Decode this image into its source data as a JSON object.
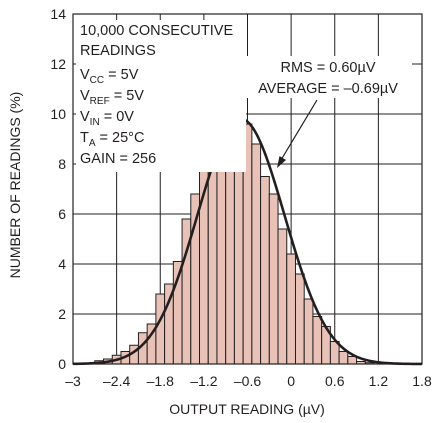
{
  "chart_data": {
    "type": "bar",
    "title": "",
    "xlabel": "OUTPUT READING (µV)",
    "ylabel": "NUMBER OF READINGS (%)",
    "xlim": [
      -3,
      1.8
    ],
    "ylim": [
      0,
      14
    ],
    "x_ticks": [
      -3,
      -2.4,
      -1.8,
      -1.2,
      -0.6,
      0,
      0.6,
      1.2,
      1.8
    ],
    "x_tick_labels": [
      "–3",
      "–2.4",
      "–1.8",
      "–1.2",
      "–0.6",
      "0",
      "0.6",
      "1.2",
      "1.8"
    ],
    "y_ticks": [
      0,
      2,
      4,
      6,
      8,
      10,
      12,
      14
    ],
    "y_tick_labels": [
      "0",
      "2",
      "4",
      "6",
      "8",
      "10",
      "12",
      "14"
    ],
    "grid": true,
    "bin_width": 0.12,
    "bins": [
      {
        "x": -2.64,
        "y": 0.13
      },
      {
        "x": -2.52,
        "y": 0.2
      },
      {
        "x": -2.4,
        "y": 0.35
      },
      {
        "x": -2.28,
        "y": 0.5
      },
      {
        "x": -2.16,
        "y": 0.75
      },
      {
        "x": -2.04,
        "y": 1.25
      },
      {
        "x": -1.92,
        "y": 1.6
      },
      {
        "x": -1.8,
        "y": 2.8
      },
      {
        "x": -1.68,
        "y": 3.2
      },
      {
        "x": -1.56,
        "y": 4.1
      },
      {
        "x": -1.44,
        "y": 5.8
      },
      {
        "x": -1.32,
        "y": 6.8
      },
      {
        "x": -1.2,
        "y": 7.7
      },
      {
        "x": -1.08,
        "y": 8.2
      },
      {
        "x": -0.96,
        "y": 9.7
      },
      {
        "x": -0.84,
        "y": 9.7
      },
      {
        "x": -0.72,
        "y": 9.7
      },
      {
        "x": -0.6,
        "y": 9.6
      },
      {
        "x": -0.48,
        "y": 8.8
      },
      {
        "x": -0.36,
        "y": 7.5
      },
      {
        "x": -0.24,
        "y": 6.8
      },
      {
        "x": -0.12,
        "y": 5.4
      },
      {
        "x": 0.0,
        "y": 4.4
      },
      {
        "x": 0.12,
        "y": 3.6
      },
      {
        "x": 0.24,
        "y": 2.6
      },
      {
        "x": 0.36,
        "y": 1.9
      },
      {
        "x": 0.48,
        "y": 1.5
      },
      {
        "x": 0.6,
        "y": 0.9
      },
      {
        "x": 0.72,
        "y": 0.5
      },
      {
        "x": 0.84,
        "y": 0.3
      },
      {
        "x": 0.96,
        "y": 0.1
      },
      {
        "x": 1.08,
        "y": 0.05
      }
    ],
    "fit_curve": {
      "type": "gaussian",
      "mean": -0.69,
      "sigma": 0.6,
      "peak": 9.8
    },
    "annotations": {
      "conditions": [
        "10,000 CONSECUTIVE",
        "READINGS"
      ],
      "vcc": {
        "main": "V",
        "sub": "CC",
        "rest": " = 5V"
      },
      "vref": {
        "main": "V",
        "sub": "REF",
        "rest": " = 5V"
      },
      "vin": {
        "main": "V",
        "sub": "IN",
        "rest": " = 0V"
      },
      "ta": {
        "main": "T",
        "sub": "A",
        "rest": " = 25°C"
      },
      "gain": "GAIN = 256",
      "rms": "RMS = 0.60µV",
      "average": "AVERAGE = –0.69µV"
    },
    "colors": {
      "bar_fill": "#e8c2b7",
      "bar_stroke": "#231f20",
      "curve": "#231f20",
      "grid": "#231f20",
      "text": "#231f20"
    }
  }
}
